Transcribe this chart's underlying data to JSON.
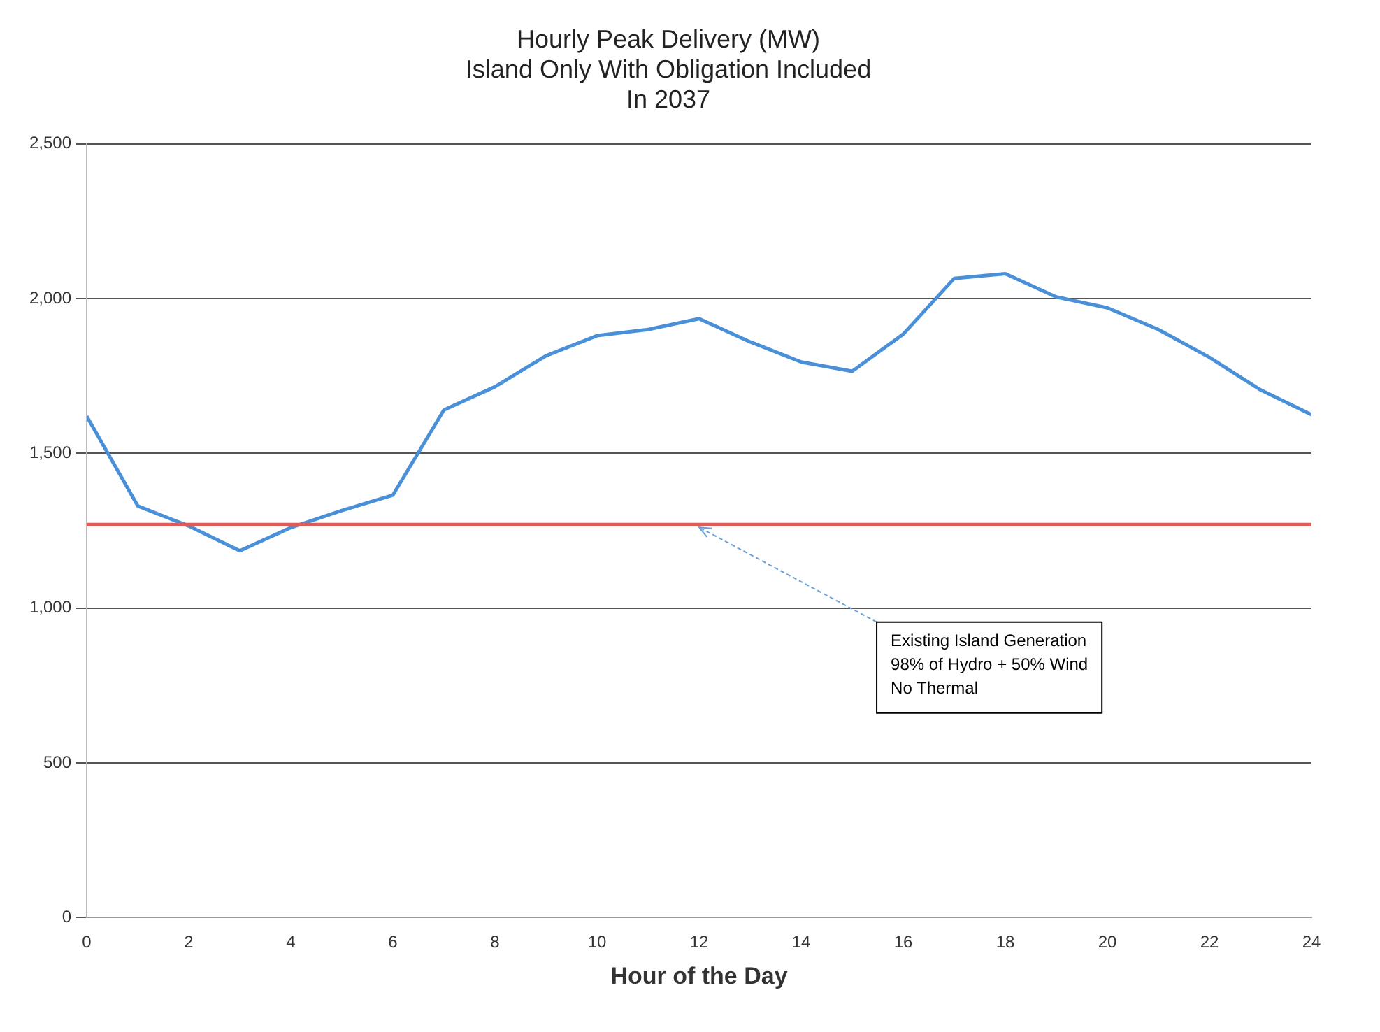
{
  "chart_data": {
    "type": "line",
    "title": "Hourly Peak Delivery (MW)\nIsland Only With Obligation Included\nIn 2037",
    "xlabel": "Hour of the Day",
    "x": [
      0,
      1,
      2,
      3,
      4,
      5,
      6,
      7,
      8,
      9,
      10,
      11,
      12,
      13,
      14,
      15,
      16,
      17,
      18,
      19,
      20,
      21,
      22,
      23,
      24
    ],
    "series": [
      {
        "color": "#4a90d9",
        "values": [
          1620,
          1330,
          1265,
          1185,
          1260,
          1315,
          1365,
          1640,
          1715,
          1815,
          1880,
          1900,
          1935,
          1860,
          1795,
          1765,
          1885,
          2065,
          2080,
          2005,
          1970,
          1900,
          1810,
          1705,
          1625
        ]
      }
    ],
    "xlim": [
      0,
      24
    ],
    "xticks": [
      0,
      2,
      4,
      6,
      8,
      10,
      12,
      14,
      16,
      18,
      20,
      22,
      24
    ],
    "ylim": [
      0,
      2500
    ],
    "yticks": [
      {
        "value": 0,
        "label": "0"
      },
      {
        "value": 500,
        "label": "500"
      },
      {
        "value": 1000,
        "label": "1,000"
      },
      {
        "value": 1500,
        "label": "1,500"
      },
      {
        "value": 2000,
        "label": "2,000"
      },
      {
        "value": 2500,
        "label": "2,500"
      }
    ],
    "ref_lines": [
      {
        "axis": "y",
        "value": 1270,
        "color": "#e05a5a"
      }
    ],
    "annotations": [
      {
        "text": "Existing Island Generation\n98% of Hydro + 50% Wind\nNo Thermal",
        "x": 12,
        "y": 1270
      }
    ],
    "grid": "y",
    "legend": false,
    "marker": "none",
    "line_style": "solid"
  }
}
